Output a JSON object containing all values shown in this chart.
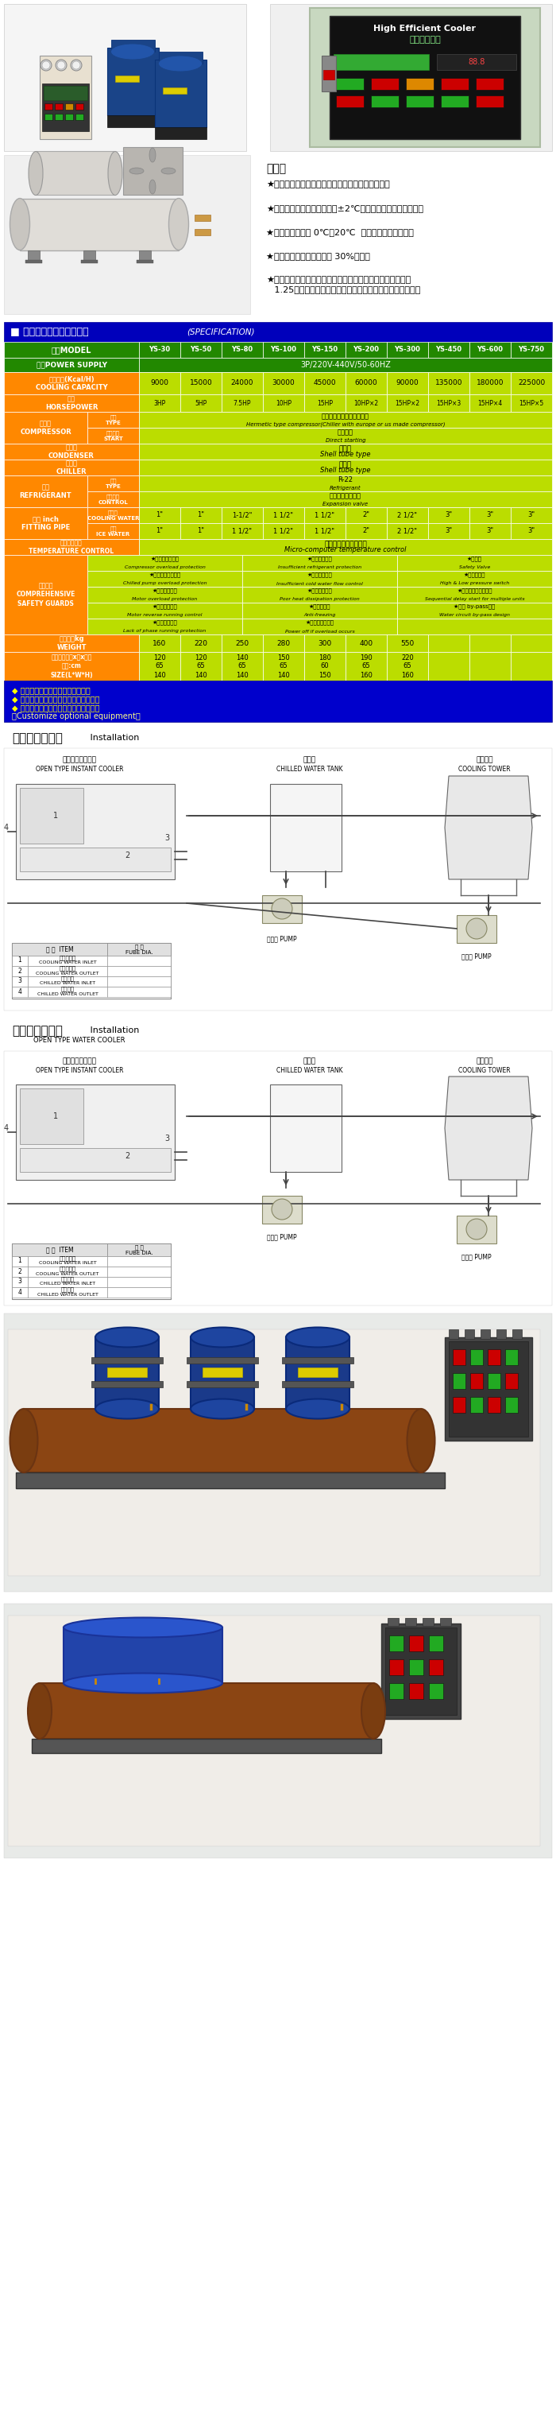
{
  "page_bg": "#ffffff",
  "features_title": "特點：",
  "features": [
    "★適合水質汙濁、供水情況不佳的地區之工業冷卻。",
    "★微電腦自動控溫，精確度在±2℃，採數值顯示，一目瞭然。",
    "★本機冰水溫度從 0℃～20℃  可任意調整穩定控制。",
    "★提高生產速率，平均可達 30%以上。",
    "★採用進口無縫鋼管，鰭型波牙、散熱面積較一般其他廠牌大\n   1.25倍，密閉式蒸發器，強制式水循環，節省能源效率高。"
  ],
  "spec_title": "■ 水冷開放式冷卻機規格表",
  "spec_subtitle": "(SPECIFICATION)",
  "models": [
    "YS-30",
    "YS-50",
    "YS-80",
    "YS-100",
    "YS-150",
    "YS-200",
    "YS-300",
    "YS-450",
    "YS-600",
    "YS-750"
  ],
  "cooling_capacity": [
    "9000",
    "15000",
    "24000",
    "30000",
    "45000",
    "60000",
    "90000",
    "135000",
    "180000",
    "225000"
  ],
  "horsepower": [
    "3HP",
    "5HP",
    "7.5HP",
    "10HP",
    "15HP",
    "10HP×2",
    "15HP×2",
    "15HP×3",
    "15HP×4",
    "15HP×5"
  ],
  "comp_type_zh": "全密閉往復式（歐美進口）",
  "comp_type_en": "Hermetic type compressor(Chiller with europe or us made compressor)",
  "comp_start_zh": "直接起動",
  "comp_start_en": "Direct starting",
  "condenser_zh": "殼管式",
  "condenser_en": "Shell tube type",
  "chiller_zh": "殼管式",
  "chiller_en": "Shell tube type",
  "refrig_type_zh": "R-22",
  "refrig_type_en": "Refrigerant",
  "refrig_ctrl_zh": "感溫式自動膨脹閥",
  "refrig_ctrl_en": "Expansion valve",
  "cooling_water_pipe": [
    "1\"",
    "1\"",
    "1-1/2\"",
    "1 1/2\"",
    "1 1/2\"",
    "2\"",
    "2 1/2\"",
    "3\"",
    "3\"",
    "3\""
  ],
  "ice_water_pipe": [
    "1\"",
    "1\"",
    "1 1/2\"",
    "1 1/2\"",
    "1 1/2\"",
    "2\"",
    "2 1/2\"",
    "3\"",
    "3\"",
    "3\""
  ],
  "temp_ctrl_zh": "微電腦自動溫度控制器",
  "temp_ctrl_en": "Micro-computer temperature control",
  "safety_col1": [
    "★壓縮機過載保護\nCompressor overload protection",
    "★冰水泵浦過載保護\nChilled pump overload protection",
    "★馬達過載保護\nMotor overload protection",
    "★馬達逆相控制\nMotor reverse running control",
    "★電源欠相保護\nLack of phase running protection"
  ],
  "safety_col2": [
    "★冷媒不足指示\nInsufficient refrigerant protection",
    "★流量不足指示\nInsufficient cold water flow control",
    "★散熱不良指示\nPoor heat dissipation protection",
    "★防凍控制器\nAnti-freezing",
    "★超負荷斷電保護\nPower off if overload occurs"
  ],
  "safety_col3": [
    "★安全閥\nSafety Valve",
    "★高低壓開關\nHigh & Low pressure switch",
    "★多機式延時啟動控制\nSequential delay start for multiple units",
    "★冰水 by-pass設計\nWater circuit by-pass design",
    ""
  ],
  "weight": [
    "160",
    "220",
    "250",
    "280",
    "300",
    "400",
    "550",
    "",
    "",
    ""
  ],
  "size_l": [
    "120",
    "120",
    "140",
    "150",
    "180",
    "190",
    "220",
    "",
    "",
    ""
  ],
  "size_w": [
    "65",
    "65",
    "65",
    "65",
    "60",
    "65",
    "65",
    "",
    "",
    ""
  ],
  "size_h": [
    "140",
    "140",
    "140",
    "140",
    "150",
    "160",
    "160",
    "",
    "",
    ""
  ],
  "notes": [
    "◆ 配管規格可依客戶需求特殊訂製。",
    "◆ 溫度設定使用可依客戶需求特殊訂製。",
    "◆ 客製化特殊機機規格可另行設計製造。",
    "【Customize optional equipment】"
  ],
  "install1_title_zh": "水電配管示意圖",
  "install1_title_en": " Installation",
  "install1_subtitle": "開放式急速冷卻機\nOPEN TYPE INSTANT COOLER",
  "install1_tank": "冰水槽\nCHILLED WATER TANK",
  "install1_tower": "冷卻水塔\nCOOLING TOWER",
  "install1_pump": "水幫浦 PUMP",
  "install2_title_zh": "水電配管示意圖",
  "install2_title_en": " Installation",
  "install2_subtitle": "OPEN TYPE WATER COOLER",
  "col_header_bg": "#228800",
  "col_orange_bg": "#ff8800",
  "col_ygreen_bg": "#bbdd00",
  "col_blue_bg": "#0000bb",
  "col_note_bg": "#0000cc"
}
